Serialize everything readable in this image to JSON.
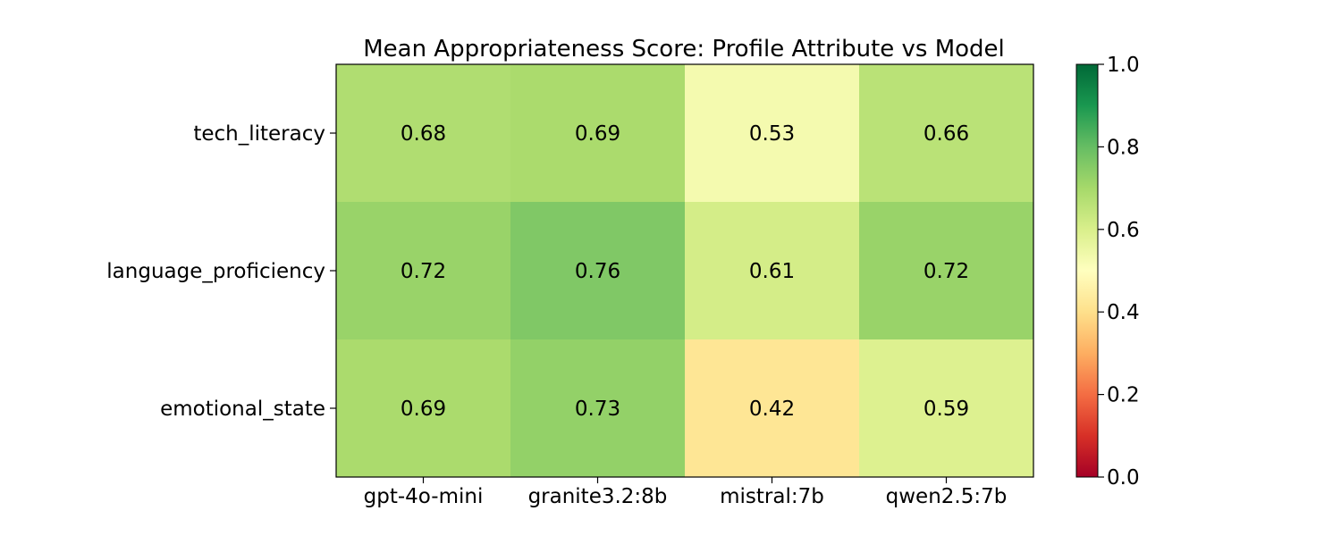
{
  "chart_data": {
    "type": "heatmap",
    "title": "Mean Appropriateness Score: Profile Attribute vs Model",
    "xlabel": "",
    "ylabel": "",
    "x_categories": [
      "gpt-4o-mini",
      "granite3.2:8b",
      "mistral:7b",
      "qwen2.5:7b"
    ],
    "y_categories": [
      "tech_literacy",
      "language_proficiency",
      "emotional_state"
    ],
    "values": [
      [
        0.68,
        0.69,
        0.53,
        0.66
      ],
      [
        0.72,
        0.76,
        0.61,
        0.72
      ],
      [
        0.69,
        0.73,
        0.42,
        0.59
      ]
    ],
    "value_labels": [
      [
        "0.68",
        "0.69",
        "0.53",
        "0.66"
      ],
      [
        "0.72",
        "0.76",
        "0.61",
        "0.72"
      ],
      [
        "0.69",
        "0.73",
        "0.42",
        "0.59"
      ]
    ],
    "colormap": "RdYlGn",
    "vmin": 0.0,
    "vmax": 1.0,
    "colorbar_ticks": [
      "0.0",
      "0.2",
      "0.4",
      "0.6",
      "0.8",
      "1.0"
    ],
    "colorbar_tick_values": [
      0.0,
      0.2,
      0.4,
      0.6,
      0.8,
      1.0
    ],
    "grid": false
  }
}
